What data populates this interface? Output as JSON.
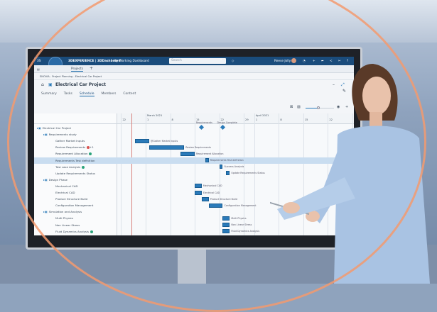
{
  "app": {
    "brand": "3DEXPERIENCE | 3DDashboard",
    "dashboard": "My Working Dashboard",
    "search_placeholder": "Search",
    "user": "Reese Jolly"
  },
  "tabs_bar": {
    "tab": "Projects",
    "add": "+"
  },
  "breadcrumb": "ENOVIA - Project Planning - Electrical Car Project",
  "project_title": "Electrical Car Project",
  "nav_tabs": [
    {
      "label": "Summary"
    },
    {
      "label": "Tasks"
    },
    {
      "label": "Schedule",
      "active": true
    },
    {
      "label": "Members"
    },
    {
      "label": "Content"
    }
  ],
  "colors": {
    "topbar": "#1a4c7c",
    "bar": "#2a7ab9",
    "today": "#d8837e",
    "selected_row": "#c9ddf0",
    "ring": "#f39a6e"
  },
  "timeline": {
    "months": [
      {
        "date": "2021-03-01",
        "label": "March 2021"
      },
      {
        "date": "2021-04-01",
        "label": "April 2021"
      }
    ],
    "ticks": [
      {
        "date": "2021-02-22",
        "label": "22"
      },
      {
        "date": "2021-03-01",
        "label": "1"
      },
      {
        "date": "2021-03-08",
        "label": "8"
      },
      {
        "date": "2021-03-15",
        "label": "15"
      },
      {
        "date": "2021-03-22",
        "label": "22"
      },
      {
        "date": "2021-03-29",
        "label": "29"
      },
      {
        "date": "2021-04-01",
        "label": "1"
      },
      {
        "date": "2021-04-08",
        "label": "8"
      },
      {
        "date": "2021-04-15",
        "label": "15"
      },
      {
        "date": "2021-04-22",
        "label": "22"
      },
      {
        "date": "2021-04-29",
        "label": "29"
      }
    ],
    "today": "2021-02-25",
    "milestones": [
      {
        "date": "2021-03-17",
        "label": "Requirements"
      },
      {
        "date": "2021-03-23",
        "label": "Design Complete"
      }
    ]
  },
  "tasks": [
    {
      "name": "Electrical Car Project",
      "level": 0,
      "group": true
    },
    {
      "name": "Requirements study",
      "level": 1,
      "group": true
    },
    {
      "name": "Gather Market Inputs",
      "level": 2,
      "start": "2021-02-26",
      "end": "2021-03-02",
      "bar_label": "@Gather Market Inputs"
    },
    {
      "name": "Review Requirements",
      "level": 2,
      "badge": "red",
      "badge_text": "+1",
      "start": "2021-03-02",
      "end": "2021-03-12",
      "bar_label": "Review Requirements"
    },
    {
      "name": "Requirement Allocation",
      "level": 2,
      "badge": "green",
      "start": "2021-03-11",
      "end": "2021-03-15",
      "bar_label": "Requirement Allocation"
    },
    {
      "name": "Requirements Test definition",
      "level": 2,
      "selected": true,
      "start": "2021-03-18",
      "end": "2021-03-19",
      "bar_label": "Requirements Test definition"
    },
    {
      "name": "Test case Analysis",
      "level": 2,
      "badge": "green",
      "start": "2021-03-22",
      "end": "2021-03-23",
      "bar_label": "Success Analysis"
    },
    {
      "name": "Update Requirements Status",
      "level": 2,
      "start": "2021-03-24",
      "end": "2021-03-25",
      "bar_label": "Update Requirements Status"
    },
    {
      "name": "Design Phase",
      "level": 1,
      "group": true
    },
    {
      "name": "Mechanical CAD",
      "level": 2,
      "start": "2021-03-15",
      "end": "2021-03-17",
      "bar_label": "Mechanical CAD"
    },
    {
      "name": "Electrical CAD",
      "level": 2,
      "start": "2021-03-15",
      "end": "2021-03-17",
      "bar_label": "Electrical CAD"
    },
    {
      "name": "Product Structure Build",
      "level": 2,
      "start": "2021-03-17",
      "end": "2021-03-19",
      "bar_label": "Product Structure Build"
    },
    {
      "name": "Configuration Management",
      "level": 2,
      "start": "2021-03-19",
      "end": "2021-03-23",
      "bar_label": "Configuration Management"
    },
    {
      "name": "Simulation and Analysis",
      "level": 1,
      "group": true
    },
    {
      "name": "Multi Physics",
      "level": 2,
      "start": "2021-03-23",
      "end": "2021-03-25",
      "bar_label": "Multi Physics"
    },
    {
      "name": "Non Linear Stress",
      "level": 2,
      "start": "2021-03-23",
      "end": "2021-03-25",
      "bar_label": "Non Linear Stress"
    },
    {
      "name": "Fluid Dynamics Analysis",
      "level": 2,
      "badge": "green",
      "start": "2021-03-23",
      "end": "2021-03-25",
      "bar_label": "Fluid Dynamics Analysis"
    }
  ],
  "zoom_slider": 0.45
}
